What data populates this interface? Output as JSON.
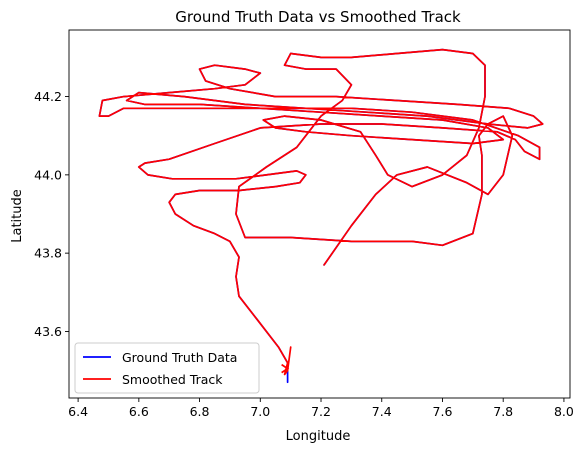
{
  "chart_data": {
    "type": "line",
    "title": "Ground Truth Data vs Smoothed Track",
    "xlabel": "Longitude",
    "ylabel": "Latitude",
    "xlim": [
      6.37,
      8.02
    ],
    "ylim": [
      43.43,
      44.37
    ],
    "xticks": [
      6.4,
      6.6,
      6.8,
      7.0,
      7.2,
      7.4,
      7.6,
      7.8,
      8.0
    ],
    "xtick_labels": [
      "6.4",
      "6.6",
      "6.8",
      "7.0",
      "7.2",
      "7.4",
      "7.6",
      "7.8",
      "8.0"
    ],
    "yticks": [
      43.6,
      43.8,
      44.0,
      44.2
    ],
    "ytick_labels": [
      "43.6",
      "43.8",
      "44.0",
      "44.2"
    ],
    "grid": false,
    "legend_position": "lower-left",
    "series": [
      {
        "name": "Ground Truth Data",
        "color": "#0000ff",
        "points": [
          [
            7.09,
            43.47
          ],
          [
            7.09,
            43.52
          ],
          [
            7.06,
            43.56
          ],
          [
            6.99,
            43.63
          ],
          [
            6.93,
            43.69
          ],
          [
            6.92,
            43.74
          ],
          [
            6.93,
            43.79
          ],
          [
            6.9,
            43.83
          ],
          [
            6.85,
            43.85
          ],
          [
            6.78,
            43.87
          ],
          [
            6.72,
            43.9
          ],
          [
            6.7,
            43.93
          ],
          [
            6.72,
            43.95
          ],
          [
            6.8,
            43.96
          ],
          [
            6.93,
            43.96
          ],
          [
            7.05,
            43.97
          ],
          [
            7.13,
            43.98
          ],
          [
            7.15,
            44.0
          ],
          [
            7.12,
            44.01
          ],
          [
            7.02,
            44.0
          ],
          [
            6.92,
            43.99
          ],
          [
            6.81,
            43.99
          ],
          [
            6.71,
            43.99
          ],
          [
            6.63,
            44.0
          ],
          [
            6.6,
            44.02
          ],
          [
            6.62,
            44.03
          ],
          [
            6.7,
            44.04
          ],
          [
            6.85,
            44.08
          ],
          [
            7.0,
            44.12
          ],
          [
            7.2,
            44.13
          ],
          [
            7.4,
            44.13
          ],
          [
            7.6,
            44.12
          ],
          [
            7.78,
            44.11
          ],
          [
            7.84,
            44.09
          ],
          [
            7.87,
            44.06
          ],
          [
            7.92,
            44.04
          ],
          [
            7.92,
            44.07
          ],
          [
            7.85,
            44.1
          ],
          [
            7.7,
            44.14
          ],
          [
            7.5,
            44.16
          ],
          [
            7.3,
            44.17
          ],
          [
            7.1,
            44.17
          ],
          [
            6.9,
            44.17
          ],
          [
            6.7,
            44.17
          ],
          [
            6.55,
            44.17
          ],
          [
            6.5,
            44.15
          ],
          [
            6.47,
            44.15
          ],
          [
            6.48,
            44.19
          ],
          [
            6.55,
            44.2
          ],
          [
            6.7,
            44.21
          ],
          [
            6.85,
            44.22
          ],
          [
            6.95,
            44.23
          ],
          [
            7.0,
            44.26
          ],
          [
            6.95,
            44.27
          ],
          [
            6.85,
            44.28
          ],
          [
            6.8,
            44.27
          ],
          [
            6.82,
            44.24
          ],
          [
            6.9,
            44.22
          ],
          [
            7.05,
            44.2
          ],
          [
            7.25,
            44.2
          ],
          [
            7.45,
            44.19
          ],
          [
            7.65,
            44.18
          ],
          [
            7.82,
            44.17
          ],
          [
            7.9,
            44.15
          ],
          [
            7.93,
            44.13
          ],
          [
            7.88,
            44.12
          ],
          [
            7.75,
            44.13
          ],
          [
            7.55,
            44.15
          ],
          [
            7.35,
            44.16
          ],
          [
            7.15,
            44.17
          ],
          [
            6.95,
            44.18
          ],
          [
            6.75,
            44.2
          ],
          [
            6.6,
            44.21
          ],
          [
            6.56,
            44.19
          ],
          [
            6.62,
            44.18
          ],
          [
            6.8,
            44.18
          ],
          [
            7.0,
            44.17
          ],
          [
            7.2,
            44.16
          ],
          [
            7.4,
            44.15
          ],
          [
            7.6,
            44.14
          ],
          [
            7.75,
            44.12
          ],
          [
            7.8,
            44.09
          ],
          [
            7.7,
            44.08
          ],
          [
            7.5,
            44.09
          ],
          [
            7.3,
            44.1
          ],
          [
            7.15,
            44.11
          ],
          [
            7.05,
            44.12
          ],
          [
            7.01,
            44.14
          ],
          [
            7.08,
            44.15
          ],
          [
            7.2,
            44.14
          ],
          [
            7.33,
            44.11
          ],
          [
            7.38,
            44.05
          ],
          [
            7.42,
            44.0
          ],
          [
            7.5,
            43.97
          ],
          [
            7.6,
            44.0
          ],
          [
            7.68,
            44.05
          ],
          [
            7.72,
            44.12
          ],
          [
            7.74,
            44.2
          ],
          [
            7.74,
            44.28
          ],
          [
            7.7,
            44.31
          ],
          [
            7.6,
            44.32
          ],
          [
            7.45,
            44.31
          ],
          [
            7.3,
            44.3
          ],
          [
            7.2,
            44.3
          ],
          [
            7.1,
            44.31
          ],
          [
            7.08,
            44.28
          ],
          [
            7.15,
            44.27
          ],
          [
            7.25,
            44.27
          ],
          [
            7.3,
            44.23
          ],
          [
            7.27,
            44.19
          ],
          [
            7.2,
            44.15
          ],
          [
            7.12,
            44.07
          ],
          [
            7.02,
            44.02
          ],
          [
            6.93,
            43.97
          ],
          [
            6.92,
            43.9
          ],
          [
            6.95,
            43.84
          ],
          [
            7.1,
            43.84
          ],
          [
            7.3,
            43.83
          ],
          [
            7.5,
            43.83
          ],
          [
            7.6,
            43.82
          ],
          [
            7.7,
            43.85
          ],
          [
            7.73,
            43.95
          ],
          [
            7.73,
            44.05
          ],
          [
            7.72,
            44.1
          ],
          [
            7.75,
            44.13
          ],
          [
            7.8,
            44.15
          ],
          [
            7.83,
            44.1
          ],
          [
            7.8,
            44.0
          ],
          [
            7.75,
            43.95
          ],
          [
            7.68,
            43.98
          ],
          [
            7.55,
            44.02
          ],
          [
            7.45,
            44.0
          ],
          [
            7.38,
            43.95
          ],
          [
            7.3,
            43.87
          ],
          [
            7.21,
            43.77
          ]
        ]
      },
      {
        "name": "Smoothed Track",
        "color": "#ff0000",
        "points": [
          [
            7.1,
            43.56
          ],
          [
            7.09,
            43.5
          ],
          [
            7.08,
            43.49
          ],
          [
            7.09,
            43.52
          ],
          [
            7.06,
            43.56
          ],
          [
            6.99,
            43.63
          ],
          [
            6.93,
            43.69
          ],
          [
            6.92,
            43.74
          ],
          [
            6.93,
            43.79
          ],
          [
            6.9,
            43.83
          ],
          [
            6.85,
            43.85
          ],
          [
            6.78,
            43.87
          ],
          [
            6.72,
            43.9
          ],
          [
            6.7,
            43.93
          ],
          [
            6.72,
            43.95
          ],
          [
            6.8,
            43.96
          ],
          [
            6.93,
            43.96
          ],
          [
            7.05,
            43.97
          ],
          [
            7.13,
            43.98
          ],
          [
            7.15,
            44.0
          ],
          [
            7.12,
            44.01
          ],
          [
            7.02,
            44.0
          ],
          [
            6.92,
            43.99
          ],
          [
            6.81,
            43.99
          ],
          [
            6.71,
            43.99
          ],
          [
            6.63,
            44.0
          ],
          [
            6.6,
            44.02
          ],
          [
            6.62,
            44.03
          ],
          [
            6.7,
            44.04
          ],
          [
            6.85,
            44.08
          ],
          [
            7.0,
            44.12
          ],
          [
            7.2,
            44.13
          ],
          [
            7.4,
            44.13
          ],
          [
            7.6,
            44.12
          ],
          [
            7.78,
            44.11
          ],
          [
            7.84,
            44.09
          ],
          [
            7.87,
            44.06
          ],
          [
            7.92,
            44.04
          ],
          [
            7.92,
            44.07
          ],
          [
            7.85,
            44.1
          ],
          [
            7.7,
            44.14
          ],
          [
            7.5,
            44.16
          ],
          [
            7.3,
            44.17
          ],
          [
            7.1,
            44.17
          ],
          [
            6.9,
            44.17
          ],
          [
            6.7,
            44.17
          ],
          [
            6.55,
            44.17
          ],
          [
            6.5,
            44.15
          ],
          [
            6.47,
            44.15
          ],
          [
            6.48,
            44.19
          ],
          [
            6.55,
            44.2
          ],
          [
            6.7,
            44.21
          ],
          [
            6.85,
            44.22
          ],
          [
            6.95,
            44.23
          ],
          [
            7.0,
            44.26
          ],
          [
            6.95,
            44.27
          ],
          [
            6.85,
            44.28
          ],
          [
            6.8,
            44.27
          ],
          [
            6.82,
            44.24
          ],
          [
            6.9,
            44.22
          ],
          [
            7.05,
            44.2
          ],
          [
            7.25,
            44.2
          ],
          [
            7.45,
            44.19
          ],
          [
            7.65,
            44.18
          ],
          [
            7.82,
            44.17
          ],
          [
            7.9,
            44.15
          ],
          [
            7.93,
            44.13
          ],
          [
            7.88,
            44.12
          ],
          [
            7.75,
            44.13
          ],
          [
            7.55,
            44.15
          ],
          [
            7.35,
            44.16
          ],
          [
            7.15,
            44.17
          ],
          [
            6.95,
            44.18
          ],
          [
            6.75,
            44.2
          ],
          [
            6.6,
            44.21
          ],
          [
            6.56,
            44.19
          ],
          [
            6.62,
            44.18
          ],
          [
            6.8,
            44.18
          ],
          [
            7.0,
            44.17
          ],
          [
            7.2,
            44.16
          ],
          [
            7.4,
            44.15
          ],
          [
            7.6,
            44.14
          ],
          [
            7.75,
            44.12
          ],
          [
            7.8,
            44.09
          ],
          [
            7.7,
            44.08
          ],
          [
            7.5,
            44.09
          ],
          [
            7.3,
            44.1
          ],
          [
            7.15,
            44.11
          ],
          [
            7.05,
            44.12
          ],
          [
            7.01,
            44.14
          ],
          [
            7.08,
            44.15
          ],
          [
            7.2,
            44.14
          ],
          [
            7.33,
            44.11
          ],
          [
            7.38,
            44.05
          ],
          [
            7.42,
            44.0
          ],
          [
            7.5,
            43.97
          ],
          [
            7.6,
            44.0
          ],
          [
            7.68,
            44.05
          ],
          [
            7.72,
            44.12
          ],
          [
            7.74,
            44.2
          ],
          [
            7.74,
            44.28
          ],
          [
            7.7,
            44.31
          ],
          [
            7.6,
            44.32
          ],
          [
            7.45,
            44.31
          ],
          [
            7.3,
            44.3
          ],
          [
            7.2,
            44.3
          ],
          [
            7.1,
            44.31
          ],
          [
            7.08,
            44.28
          ],
          [
            7.15,
            44.27
          ],
          [
            7.25,
            44.27
          ],
          [
            7.3,
            44.23
          ],
          [
            7.27,
            44.19
          ],
          [
            7.2,
            44.15
          ],
          [
            7.12,
            44.07
          ],
          [
            7.02,
            44.02
          ],
          [
            6.93,
            43.97
          ],
          [
            6.92,
            43.9
          ],
          [
            6.95,
            43.84
          ],
          [
            7.1,
            43.84
          ],
          [
            7.3,
            43.83
          ],
          [
            7.5,
            43.83
          ],
          [
            7.6,
            43.82
          ],
          [
            7.7,
            43.85
          ],
          [
            7.73,
            43.95
          ],
          [
            7.73,
            44.05
          ],
          [
            7.72,
            44.1
          ],
          [
            7.75,
            44.13
          ],
          [
            7.8,
            44.15
          ],
          [
            7.83,
            44.1
          ],
          [
            7.8,
            44.0
          ],
          [
            7.75,
            43.95
          ],
          [
            7.68,
            43.98
          ],
          [
            7.55,
            44.02
          ],
          [
            7.45,
            44.0
          ],
          [
            7.38,
            43.95
          ],
          [
            7.3,
            43.87
          ],
          [
            7.21,
            43.77
          ]
        ]
      }
    ]
  }
}
